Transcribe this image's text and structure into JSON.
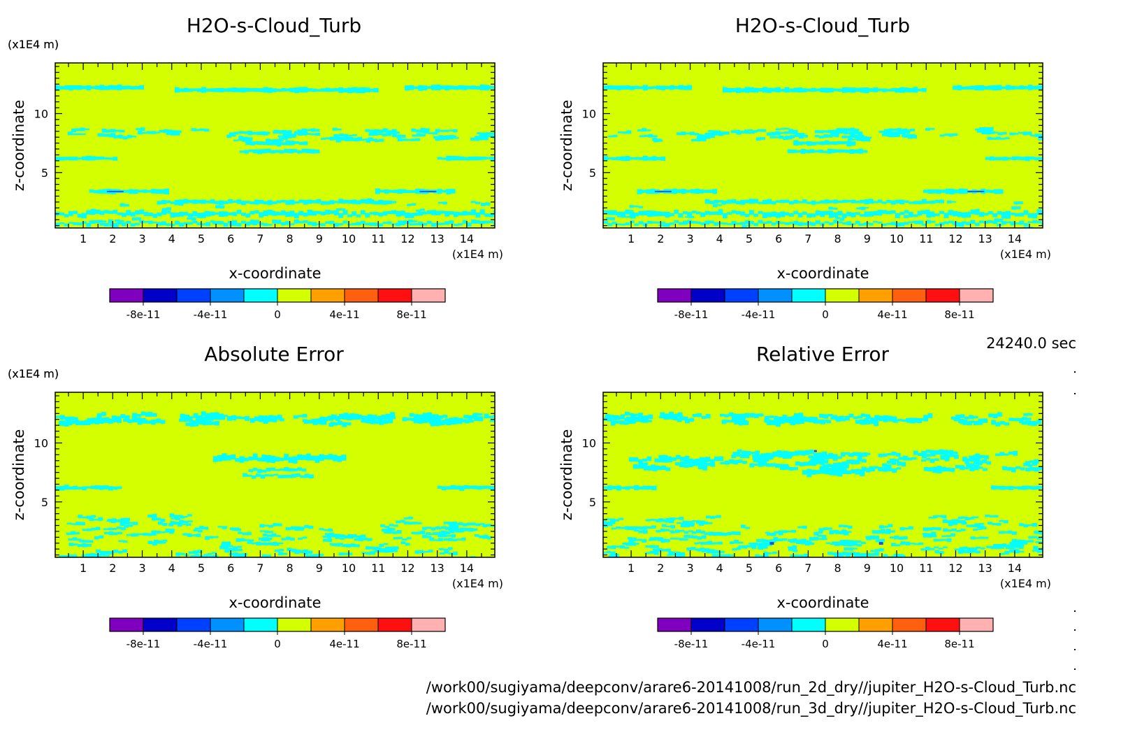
{
  "panels": [
    {
      "title": "H2O-s-Cloud_Turb",
      "xlabel": "x-coordinate",
      "ylabel": "z-coordinate",
      "x_unit": "(x1E4 m)",
      "y_unit": "(x1E4 m)",
      "pattern": "field",
      "colorbar_labels": [
        "-8e-11",
        "-4e-11",
        "0",
        "4e-11",
        "8e-11"
      ]
    },
    {
      "title": "H2O-s-Cloud_Turb",
      "xlabel": "x-coordinate",
      "ylabel": "z-coordinate",
      "x_unit": "(x1E4 m)",
      "y_unit": "(x1E4 m)",
      "pattern": "field",
      "colorbar_labels": [
        "-8e-11",
        "-4e-11",
        "0",
        "4e-11",
        "8e-11"
      ]
    },
    {
      "title": "Absolute Error",
      "xlabel": "x-coordinate",
      "ylabel": "z-coordinate",
      "x_unit": "(x1E4 m)",
      "y_unit": "(x1E4 m)",
      "pattern": "abs",
      "colorbar_labels": [
        "-8e-11",
        "-4e-11",
        "0",
        "4e-11",
        "8e-11"
      ]
    },
    {
      "title": "Relative Error",
      "xlabel": "x-coordinate",
      "ylabel": "z-coordinate",
      "x_unit": "(x1E4 m)",
      "y_unit": "(x1E4 m)",
      "pattern": "rel",
      "colorbar_labels": [
        "-8e-11",
        "-4e-11",
        "0",
        "4e-11",
        "8e-11"
      ]
    }
  ],
  "time_label": "24240.0 sec",
  "file_paths": [
    "/work00/sugiyama/deepconv/arare6-20141008/run_2d_dry//jupiter_H2O-s-Cloud_Turb.nc",
    "/work00/sugiyama/deepconv/arare6-20141008/run_3d_dry//jupiter_H2O-s-Cloud_Turb.nc"
  ],
  "colors": {
    "background_field": "#d4ff00",
    "band": "#00ffff",
    "dark_spot": "#2050e0",
    "colorbar": [
      "#8000c0",
      "#0000c8",
      "#0040ff",
      "#0090ff",
      "#00ffff",
      "#d4ff00",
      "#ffa000",
      "#ff6010",
      "#ff1010",
      "#ffb0b0"
    ]
  },
  "chart_data": [
    {
      "type": "heatmap",
      "title": "H2O-s-Cloud_Turb",
      "xlabel": "x-coordinate",
      "ylabel": "z-coordinate",
      "xlim": [
        0,
        15
      ],
      "ylim": [
        0,
        15
      ],
      "x_ticks": [
        "1",
        "2",
        "3",
        "4",
        "5",
        "6",
        "7",
        "8",
        "9",
        "10",
        "11",
        "12",
        "13",
        "14"
      ],
      "y_ticks": [
        "5",
        "10"
      ],
      "colorbar": {
        "range": [
          -1e-10,
          1e-10
        ],
        "ticks": [
          "-8e-11",
          "-4e-11",
          "0",
          "4e-11",
          "8e-11"
        ]
      },
      "description_value": "field near 0 (small positive) with cyan bands near z=1,2.5,6.2,8.3,12"
    },
    {
      "type": "heatmap",
      "title": "H2O-s-Cloud_Turb",
      "xlabel": "x-coordinate",
      "ylabel": "z-coordinate",
      "xlim": [
        0,
        15
      ],
      "ylim": [
        0,
        15
      ],
      "x_ticks": [
        "1",
        "2",
        "3",
        "4",
        "5",
        "6",
        "7",
        "8",
        "9",
        "10",
        "11",
        "12",
        "13",
        "14"
      ],
      "y_ticks": [
        "5",
        "10"
      ],
      "colorbar": {
        "range": [
          -1e-10,
          1e-10
        ],
        "ticks": [
          "-8e-11",
          "-4e-11",
          "0",
          "4e-11",
          "8e-11"
        ]
      }
    },
    {
      "type": "heatmap",
      "title": "Absolute Error",
      "xlabel": "x-coordinate",
      "ylabel": "z-coordinate",
      "xlim": [
        0,
        15
      ],
      "ylim": [
        0,
        15
      ],
      "x_ticks": [
        "1",
        "2",
        "3",
        "4",
        "5",
        "6",
        "7",
        "8",
        "9",
        "10",
        "11",
        "12",
        "13",
        "14"
      ],
      "y_ticks": [
        "5",
        "10"
      ],
      "colorbar": {
        "range": [
          -1e-10,
          1e-10
        ],
        "ticks": [
          "-8e-11",
          "-4e-11",
          "0",
          "4e-11",
          "8e-11"
        ]
      }
    },
    {
      "type": "heatmap",
      "title": "Relative Error",
      "xlabel": "x-coordinate",
      "ylabel": "z-coordinate",
      "xlim": [
        0,
        15
      ],
      "ylim": [
        0,
        15
      ],
      "x_ticks": [
        "1",
        "2",
        "3",
        "4",
        "5",
        "6",
        "7",
        "8",
        "9",
        "10",
        "11",
        "12",
        "13",
        "14"
      ],
      "y_ticks": [
        "5",
        "10"
      ],
      "colorbar": {
        "range": [
          -1e-10,
          1e-10
        ],
        "ticks": [
          "-8e-11",
          "-4e-11",
          "0",
          "4e-11",
          "8e-11"
        ]
      }
    }
  ]
}
